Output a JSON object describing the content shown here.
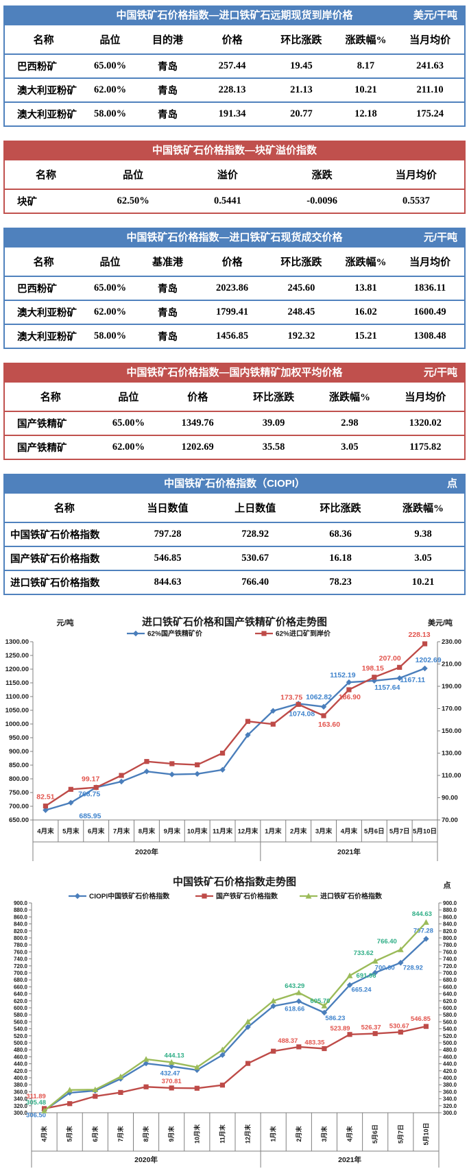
{
  "tables": [
    {
      "theme": "blue",
      "title": "中国铁矿石价格指数—进口铁矿石远期现货到岸价格",
      "unit": "美元/干吨",
      "headers": [
        "名称",
        "品位",
        "目的港",
        "价格",
        "环比涨跌",
        "涨跌幅%",
        "当月均价"
      ],
      "rows": [
        [
          "巴西粉矿",
          "65.00%",
          "青岛",
          "257.44",
          "19.45",
          "8.17",
          "241.63"
        ],
        [
          "澳大利亚粉矿",
          "62.00%",
          "青岛",
          "228.13",
          "21.13",
          "10.21",
          "211.10"
        ],
        [
          "澳大利亚粉矿",
          "58.00%",
          "青岛",
          "191.34",
          "20.77",
          "12.18",
          "175.24"
        ]
      ]
    },
    {
      "theme": "red",
      "title": "中国铁矿石价格指数—块矿溢价指数",
      "unit": "",
      "headers": [
        "名称",
        "品位",
        "溢价",
        "涨跌",
        "当月均价"
      ],
      "rows": [
        [
          "块矿",
          "62.50%",
          "0.5441",
          "-0.0096",
          "0.5537"
        ]
      ]
    },
    {
      "theme": "blue",
      "title": "中国铁矿石价格指数—进口铁矿石现货成交价格",
      "unit": "元/干吨",
      "headers": [
        "名称",
        "品位",
        "基准港",
        "价格",
        "环比涨跌",
        "涨跌幅%",
        "当月均价"
      ],
      "rows": [
        [
          "巴西粉矿",
          "65.00%",
          "青岛",
          "2023.86",
          "245.60",
          "13.81",
          "1836.11"
        ],
        [
          "澳大利亚粉矿",
          "62.00%",
          "青岛",
          "1799.41",
          "248.45",
          "16.02",
          "1600.49"
        ],
        [
          "澳大利亚粉矿",
          "58.00%",
          "青岛",
          "1456.85",
          "192.32",
          "15.21",
          "1308.48"
        ]
      ]
    },
    {
      "theme": "red",
      "title": "中国铁矿石价格指数—国内铁精矿加权平均价格",
      "unit": "元/干吨",
      "headers": [
        "名称",
        "品位",
        "价格",
        "环比涨跌",
        "涨跌幅%",
        "当月均价"
      ],
      "rows": [
        [
          "国产铁精矿",
          "65.00%",
          "1349.76",
          "39.09",
          "2.98",
          "1320.02"
        ],
        [
          "国产铁精矿",
          "62.00%",
          "1202.69",
          "35.58",
          "3.05",
          "1175.82"
        ]
      ]
    },
    {
      "theme": "blue",
      "title": "中国铁矿石价格指数（CIOPI）",
      "unit": "点",
      "headers": [
        "名称",
        "当日数值",
        "上日数值",
        "环比涨跌",
        "涨跌幅%"
      ],
      "rows": [
        [
          "中国铁矿石价格指数",
          "797.28",
          "728.92",
          "68.36",
          "9.38"
        ],
        [
          "国产铁矿石价格指数",
          "546.85",
          "530.67",
          "16.18",
          "3.05"
        ],
        [
          "进口铁矿石价格指数",
          "844.63",
          "766.40",
          "78.23",
          "10.21"
        ]
      ]
    }
  ],
  "chart_data": [
    {
      "type": "line",
      "title": "进口铁矿石价格和国产铁精矿价格走势图",
      "left_unit": "元/吨",
      "right_unit": "美元/吨",
      "categories": [
        "4月末",
        "5月末",
        "6月末",
        "7月末",
        "8月末",
        "9月末",
        "10月末",
        "11月末",
        "12月末",
        "1月末",
        "2月末",
        "3月末",
        "4月末",
        "5月6日",
        "5月7日",
        "5月10日"
      ],
      "year_groups": [
        {
          "label": "2020年",
          "span": 9
        },
        {
          "label": "2021年",
          "span": 7
        }
      ],
      "left_axis": {
        "min": 650,
        "max": 1300,
        "step": 50,
        "decimals": 2
      },
      "right_axis": {
        "min": 70,
        "max": 230,
        "step": 20,
        "decimals": 2
      },
      "legend_position": "top",
      "grid": false,
      "series": [
        {
          "name": "62%国产铁精矿价",
          "axis": "left",
          "marker": "diamond",
          "color": "#4a7ebb",
          "label_color": "#3f83cc",
          "values": [
            685.95,
            713,
            768.75,
            790,
            827,
            816,
            818,
            833,
            960,
            1048,
            1074.08,
            1062.82,
            1152.19,
            1157.64,
            1167.11,
            1202.69
          ],
          "labels": [
            [
              0,
              "685.95",
              65,
              12
            ],
            [
              2,
              "768.75",
              -10,
              13
            ],
            [
              10,
              "1074.08",
              5,
              18
            ],
            [
              11,
              "1062.82",
              -7,
              -11
            ],
            [
              12,
              "1152.19",
              -9,
              -7
            ],
            [
              13,
              "1157.64",
              19,
              13
            ],
            [
              14,
              "1167.11",
              19,
              6
            ],
            [
              15,
              "1202.69",
              5,
              -9
            ]
          ]
        },
        {
          "name": "62%进口矿到岸价",
          "axis": "right",
          "marker": "square",
          "color": "#be4b48",
          "label_color": "#e2544d",
          "values": [
            82.51,
            97.5,
            99.17,
            110,
            122.5,
            120.5,
            119.5,
            130,
            158.5,
            156,
            173.75,
            163.6,
            186.9,
            198.15,
            207,
            228.13
          ],
          "labels": [
            [
              0,
              "82.51",
              0,
              -10
            ],
            [
              2,
              "99.17",
              -8,
              -9
            ],
            [
              10,
              "173.75",
              -10,
              -7
            ],
            [
              11,
              "163.60",
              8,
              16
            ],
            [
              12,
              "186.90",
              1,
              14
            ],
            [
              13,
              "198.15",
              -2,
              -10
            ],
            [
              14,
              "207.00",
              -14,
              -10
            ],
            [
              15,
              "228.13",
              -8,
              -10
            ]
          ]
        }
      ]
    },
    {
      "type": "line",
      "title": "中国铁矿石价格指数走势图",
      "left_unit": "",
      "right_unit": "点",
      "categories": [
        "4月末",
        "5月末",
        "6月末",
        "7月末",
        "8月末",
        "9月末",
        "10月末",
        "11月末",
        "12月末",
        "1月末",
        "2月末",
        "3月末",
        "4月末",
        "5月6日",
        "5月7日",
        "5月10日"
      ],
      "year_groups": [
        {
          "label": "2020年",
          "span": 9
        },
        {
          "label": "2021年",
          "span": 7
        }
      ],
      "left_axis": {
        "min": 300,
        "max": 900,
        "step": 20,
        "decimals": 1
      },
      "right_axis": {
        "min": 300,
        "max": 900,
        "step": 20,
        "decimals": 1
      },
      "legend_position": "top",
      "grid": false,
      "series": [
        {
          "name": "CIOPI中国铁矿石价格指数",
          "axis": "left",
          "marker": "diamond",
          "color": "#4a7ebb",
          "label_color": "#3f83cc",
          "values": [
            306.5,
            357,
            363,
            397,
            441,
            432.47,
            422,
            465,
            545,
            605,
            618.66,
            586.23,
            665.24,
            700.6,
            728.92,
            797.28
          ],
          "labels": [
            [
              0,
              "306.50",
              -12,
              10
            ],
            [
              5,
              "432.47",
              -2,
              13
            ],
            [
              10,
              "618.66",
              -6,
              14
            ],
            [
              11,
              "586.23",
              16,
              11
            ],
            [
              12,
              "665.24",
              17,
              10
            ],
            [
              13,
              "700.60",
              14,
              -4
            ],
            [
              14,
              "728.92",
              18,
              10
            ],
            [
              15,
              "797.28",
              -4,
              -9
            ]
          ]
        },
        {
          "name": "国产铁矿石价格指数",
          "axis": "left",
          "marker": "square",
          "color": "#be4b48",
          "label_color": "#e2544d",
          "values": [
            311.89,
            326,
            347,
            358,
            374,
            370.81,
            370,
            379,
            441,
            476,
            488.37,
            483.35,
            523.89,
            526.37,
            530.67,
            546.85
          ],
          "labels": [
            [
              0,
              "311.89",
              -12,
              -15
            ],
            [
              5,
              "370.81",
              0,
              -7
            ],
            [
              10,
              "488.37",
              -16,
              -6
            ],
            [
              11,
              "483.35",
              -14,
              -6
            ],
            [
              12,
              "523.89",
              -14,
              -6
            ],
            [
              13,
              "526.37",
              -6,
              -6
            ],
            [
              14,
              "530.67",
              -2,
              -6
            ],
            [
              15,
              "546.85",
              -8,
              -8
            ]
          ]
        },
        {
          "name": "进口铁矿石价格指数",
          "axis": "left",
          "marker": "triangle",
          "color": "#9bbb59",
          "label_color": "#2fae86",
          "values": [
            305.48,
            365,
            366,
            403,
            453,
            444.13,
            430,
            480,
            560,
            620,
            643.29,
            605.7,
            691.96,
            733.62,
            766.4,
            844.63
          ],
          "labels": [
            [
              0,
              "305.48",
              -12,
              -9
            ],
            [
              5,
              "444.13",
              4,
              -7
            ],
            [
              10,
              "643.29",
              -6,
              -7
            ],
            [
              11,
              "605.70",
              -6,
              -4
            ],
            [
              12,
              "691.96",
              24,
              3
            ],
            [
              13,
              "733.62",
              -17,
              -9
            ],
            [
              14,
              "766.40",
              -20,
              -9
            ],
            [
              15,
              "844.63",
              -6,
              -9
            ]
          ]
        }
      ]
    }
  ]
}
